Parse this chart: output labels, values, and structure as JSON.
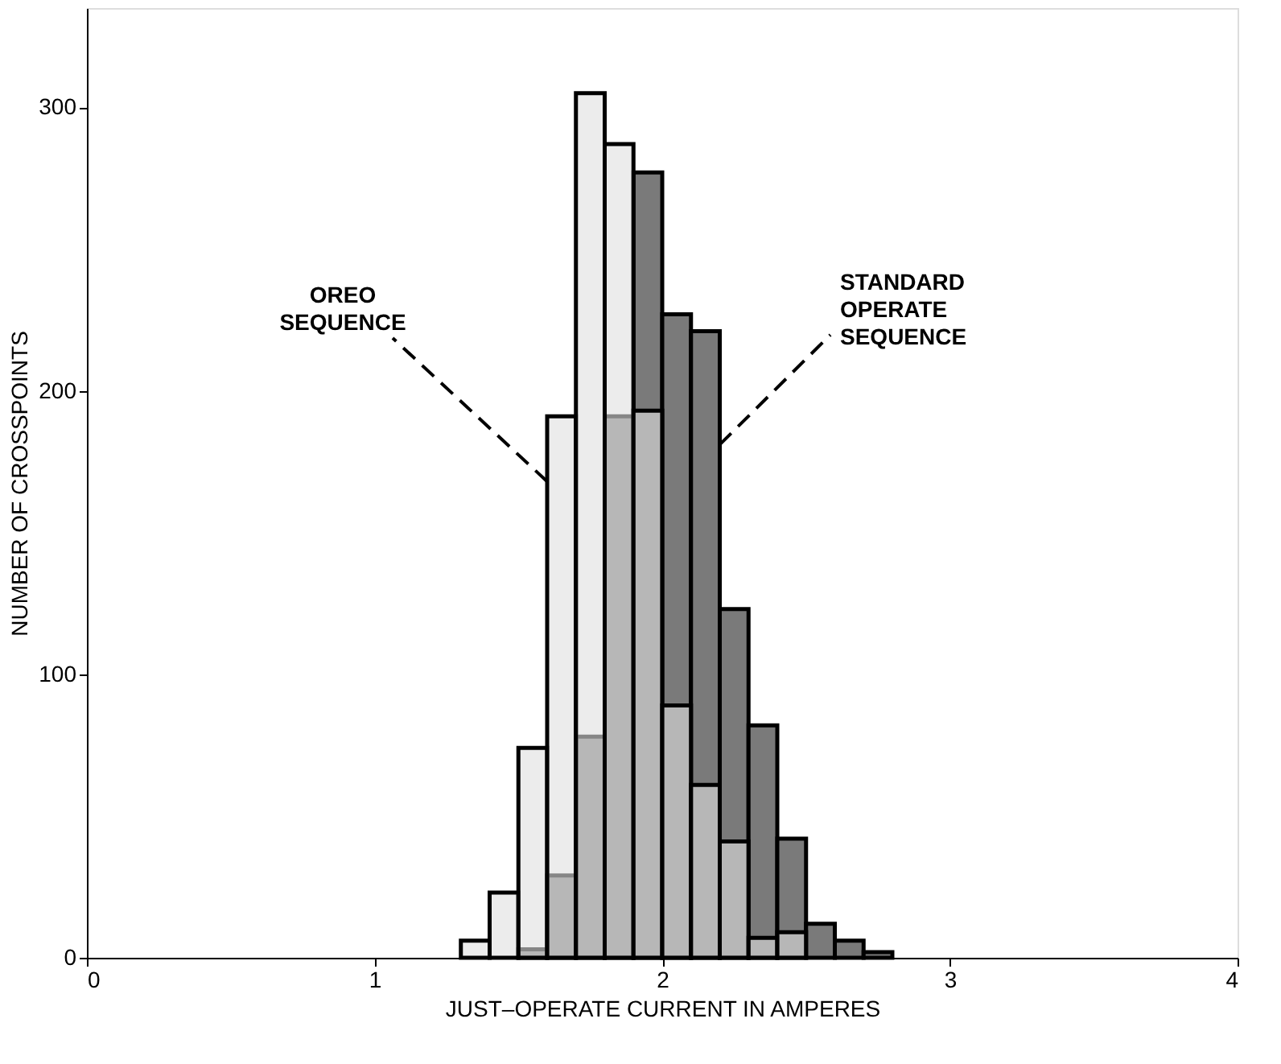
{
  "chart_data": {
    "type": "histogram",
    "xlabel": "JUST–OPERATE CURRENT IN AMPERES",
    "ylabel": "NUMBER OF CROSSPOINTS",
    "bins": [
      1.3,
      1.4,
      1.5,
      1.6,
      1.7,
      1.8,
      1.9,
      2.0,
      2.1,
      2.2,
      2.3,
      2.4,
      2.5,
      2.6,
      2.7,
      2.8
    ],
    "series": [
      {
        "color": "#7a7a7a",
        "values": [
          0,
          0,
          3,
          29,
          78,
          191,
          277,
          227,
          221,
          123,
          82,
          42,
          12,
          6,
          2
        ]
      },
      {
        "color": "#e0e0e0",
        "values": [
          6,
          23,
          74,
          191,
          305,
          287,
          193,
          89,
          61,
          41,
          7,
          9,
          0,
          0,
          0
        ]
      }
    ],
    "annotations": [
      {
        "text": "OREO\nSEQUENCE",
        "x": 1.6,
        "y": 168
      },
      {
        "text": "STANDARD\nOPERATE\nSEQUENCE",
        "x": 2.2,
        "y": 181
      }
    ],
    "xlim": [
      0,
      4
    ],
    "xticks": [
      0,
      1,
      2,
      3,
      4
    ],
    "ylim": [
      0,
      335
    ],
    "yticks": [
      0,
      100,
      200,
      300
    ],
    "grid": false,
    "legend": false
  }
}
